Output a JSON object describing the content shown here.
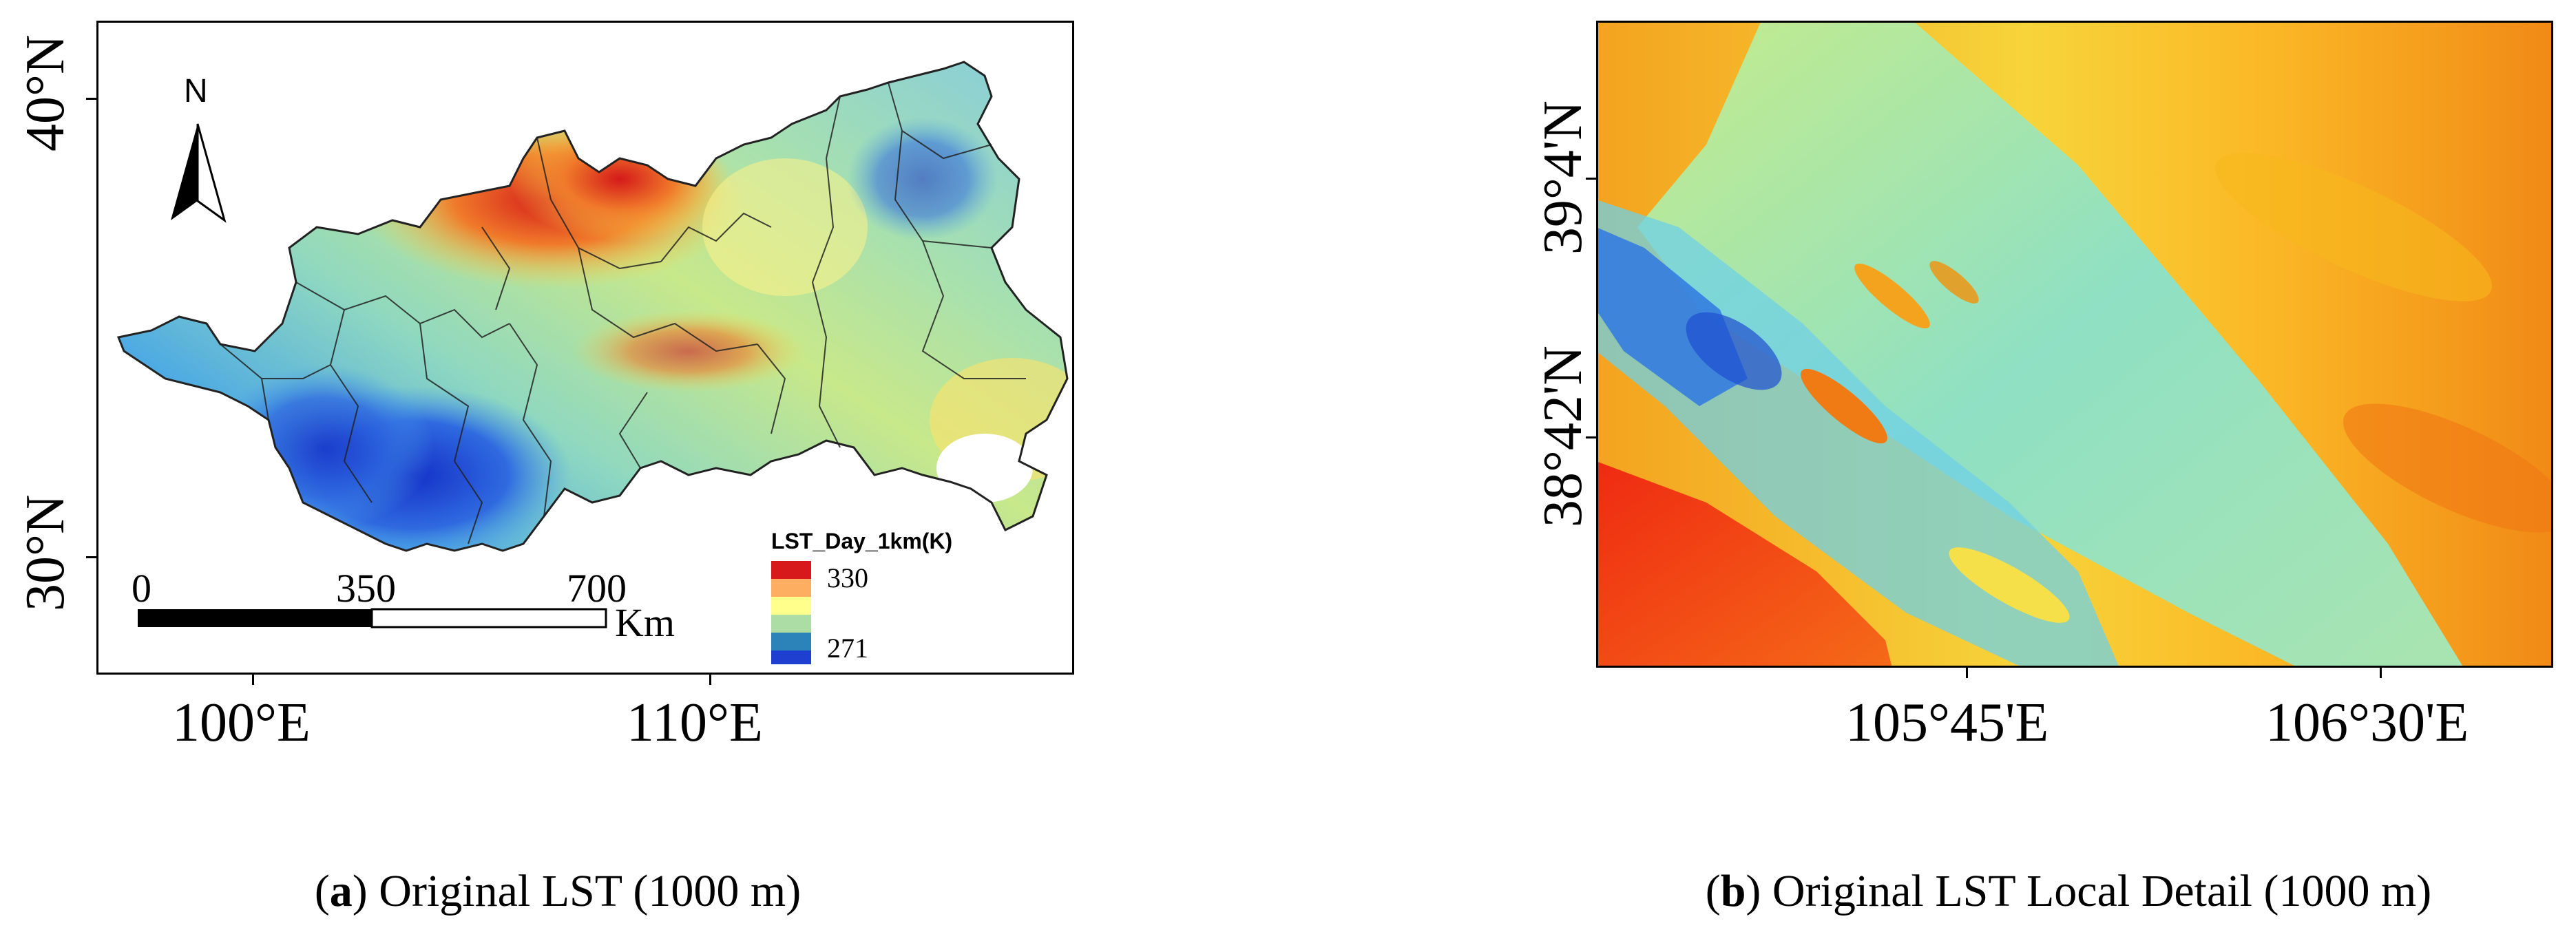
{
  "panel_a": {
    "caption_letter": "a",
    "caption_text": " Original LST (1000 m)",
    "lat_labels": [
      "40°N",
      "30°N"
    ],
    "lon_labels": [
      "100°E",
      "110°E"
    ],
    "north_label": "N",
    "legend": {
      "title": "LST_Day_1km(K)",
      "max": "330",
      "min": "271",
      "colors": [
        "#d7191c",
        "#fdae61",
        "#ffff8c",
        "#abdda4",
        "#2b83ba",
        "#1f3fd0"
      ]
    },
    "scale": {
      "ticks": [
        "0",
        "350",
        "700"
      ],
      "unit": "Km"
    }
  },
  "panel_b": {
    "caption_letter": "b",
    "caption_text": " Original LST Local Detail (1000 m)",
    "lat_labels": [
      "39°4'N",
      "38°42'N"
    ],
    "lon_labels": [
      "105°45'E",
      "106°30'E"
    ]
  }
}
